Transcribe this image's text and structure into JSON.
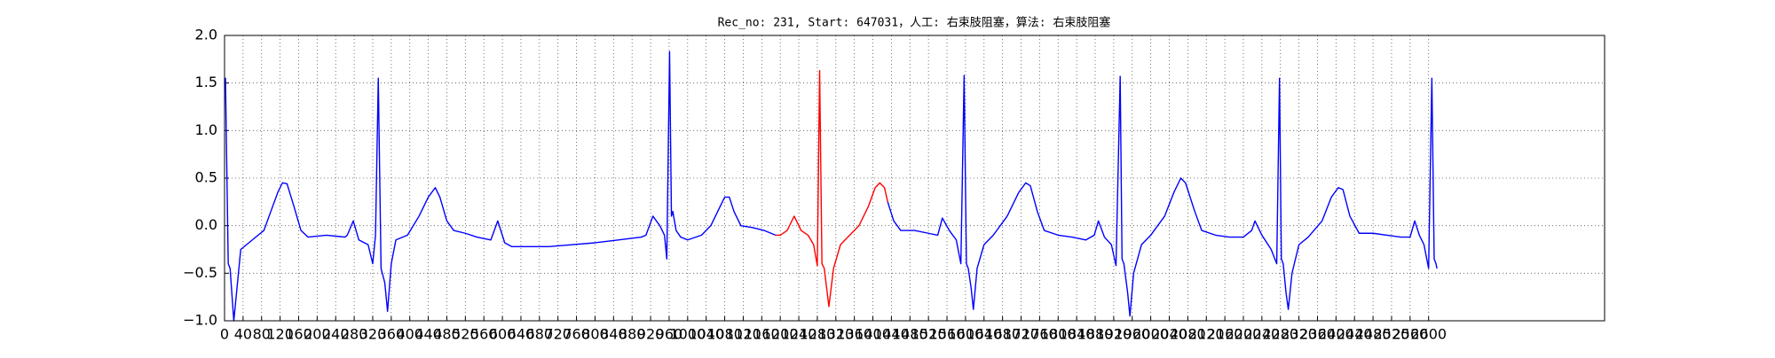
{
  "chart_data": {
    "type": "line",
    "title": "Rec_no: 231, Start: 647031，人工: 右束肢阻塞，算法: 右束肢阻塞",
    "series": [
      {
        "color": "#0000ff",
        "x": [
          0,
          2,
          8,
          12,
          20,
          30,
          35,
          60,
          85,
          100,
          115,
          125,
          135,
          150,
          165,
          180,
          220,
          260,
          265,
          278,
          290,
          310,
          320,
          326,
          332,
          338,
          346,
          352,
          360,
          370,
          395,
          420,
          440,
          455,
          465,
          480,
          495,
          520,
          545,
          575,
          590,
          605,
          620,
          700,
          800,
          850,
          900,
          910,
          925,
          940,
          950,
          955,
          961,
          965,
          968,
          975,
          985,
          1000,
          1030,
          1050,
          1070,
          1080,
          1090,
          1100,
          1115,
          1140,
          1165,
          1180,
          1190,
          null,
          1432,
          1445,
          1460,
          1490,
          1520,
          1540,
          1550,
          1565,
          1580,
          1590,
          1597,
          1602,
          1606,
          1612,
          1617,
          1625,
          1640,
          1660,
          1690,
          1715,
          1730,
          1740,
          1755,
          1770,
          1800,
          1830,
          1860,
          1878,
          1887,
          1900,
          1915,
          1925,
          1934,
          1938,
          1942,
          1950,
          1955,
          1963,
          1980,
          2000,
          2030,
          2050,
          2065,
          2075,
          2095,
          2110,
          2140,
          2170,
          2200,
          2218,
          2225,
          2240,
          2260,
          2272,
          2278,
          2282,
          2286,
          2292,
          2297,
          2305,
          2320,
          2340,
          2370,
          2390,
          2405,
          2415,
          2430,
          2450,
          2480,
          2510,
          2540,
          2560,
          2570,
          2580,
          2590,
          2600,
          2607,
          2612,
          2616,
          2618
        ],
        "values": [
          1.5,
          1.55,
          -0.4,
          -0.45,
          -1.0,
          -0.5,
          -0.25,
          -0.15,
          -0.05,
          0.15,
          0.35,
          0.45,
          0.44,
          0.2,
          -0.05,
          -0.12,
          -0.1,
          -0.12,
          -0.1,
          0.05,
          -0.15,
          -0.2,
          -0.4,
          -0.1,
          1.55,
          -0.45,
          -0.6,
          -0.9,
          -0.4,
          -0.15,
          -0.1,
          0.1,
          0.3,
          0.4,
          0.3,
          0.05,
          -0.05,
          -0.08,
          -0.12,
          -0.15,
          0.05,
          -0.18,
          -0.22,
          -0.22,
          -0.18,
          -0.15,
          -0.12,
          -0.1,
          0.1,
          0.0,
          -0.1,
          -0.35,
          1.83,
          0.1,
          0.15,
          -0.05,
          -0.12,
          -0.15,
          -0.1,
          0.0,
          0.2,
          0.3,
          0.3,
          0.15,
          0.0,
          -0.02,
          -0.05,
          -0.08,
          -0.1,
          null,
          0.25,
          0.05,
          -0.05,
          -0.05,
          -0.08,
          -0.1,
          0.08,
          -0.05,
          -0.15,
          -0.4,
          1.58,
          -0.4,
          -0.45,
          -0.65,
          -0.88,
          -0.45,
          -0.2,
          -0.1,
          0.1,
          0.35,
          0.45,
          0.42,
          0.15,
          -0.05,
          -0.1,
          -0.12,
          -0.15,
          -0.1,
          0.05,
          -0.12,
          -0.2,
          -0.42,
          1.57,
          -0.35,
          -0.4,
          -0.7,
          -0.95,
          -0.5,
          -0.2,
          -0.1,
          0.1,
          0.35,
          0.5,
          0.45,
          0.15,
          -0.05,
          -0.1,
          -0.12,
          -0.12,
          -0.05,
          0.05,
          -0.1,
          -0.25,
          -0.4,
          1.55,
          -0.35,
          -0.4,
          -0.7,
          -0.88,
          -0.5,
          -0.2,
          -0.12,
          0.05,
          0.3,
          0.4,
          0.38,
          0.1,
          -0.08,
          -0.08,
          -0.1,
          -0.12,
          -0.12,
          0.05,
          -0.1,
          -0.2,
          -0.45,
          1.55,
          -0.35,
          -0.4,
          -0.45
        ]
      },
      {
        "color": "#ff0000",
        "x": [
          1190,
          1200,
          1215,
          1230,
          1245,
          1260,
          1272,
          1280,
          1285,
          1290,
          1295,
          1300,
          1305,
          1315,
          1330,
          1350,
          1370,
          1390,
          1405,
          1415,
          1425,
          1432
        ],
        "values": [
          -0.1,
          -0.1,
          -0.05,
          0.1,
          -0.05,
          -0.1,
          -0.2,
          -0.42,
          1.63,
          -0.4,
          -0.45,
          -0.65,
          -0.85,
          -0.45,
          -0.2,
          -0.1,
          0.0,
          0.2,
          0.4,
          0.45,
          0.4,
          0.25
        ]
      }
    ],
    "xlim": [
      0,
      2980
    ],
    "xticks": [
      0,
      40,
      80,
      120,
      160,
      200,
      240,
      280,
      320,
      360,
      400,
      440,
      480,
      520,
      560,
      600,
      640,
      680,
      720,
      760,
      800,
      840,
      880,
      920,
      960,
      1000,
      1040,
      1080,
      1120,
      1160,
      1200,
      1240,
      1280,
      1320,
      1360,
      1400,
      1440,
      1480,
      1520,
      1560,
      1600,
      1640,
      1680,
      1720,
      1760,
      1800,
      1840,
      1880,
      1920,
      1960,
      2000,
      2040,
      2080,
      2120,
      2160,
      2200,
      2240,
      2280,
      2320,
      2360,
      2400,
      2440,
      2480,
      2520,
      2560,
      2600
    ],
    "ylim": [
      -1.0,
      2.0
    ],
    "yticks": [
      {
        "value": -1.0,
        "label": "−1.0"
      },
      {
        "value": -0.5,
        "label": "−0.5"
      },
      {
        "value": 0.0,
        "label": "0.0"
      },
      0.5,
      {
        "value": 1.0,
        "label": "1.0"
      },
      1.5,
      {
        "value": 2.0,
        "label": "2.0"
      }
    ],
    "grid": true
  }
}
